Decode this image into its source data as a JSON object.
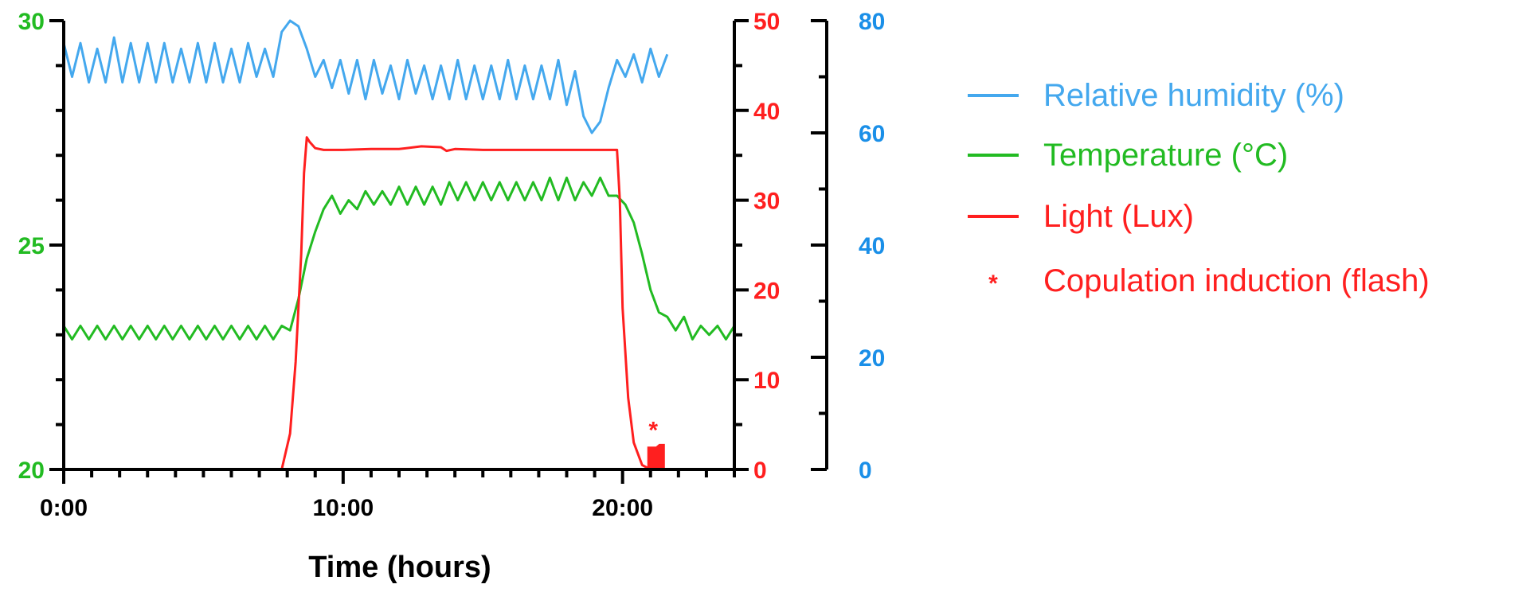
{
  "chart_data": {
    "type": "line",
    "title": "",
    "xlabel": "Time (hours)",
    "x_ticks": [
      "0:00",
      "10:00",
      "20:00"
    ],
    "x_range_hours": [
      0,
      24
    ],
    "axes": {
      "temperature": {
        "range": [
          20,
          30
        ],
        "ticks": [
          "20",
          "25",
          "30"
        ],
        "color": "#22bb22"
      },
      "light": {
        "range": [
          0,
          50
        ],
        "ticks": [
          "0",
          "10",
          "20",
          "30",
          "40",
          "50"
        ],
        "color": "#ff1f1f"
      },
      "humidity": {
        "range": [
          0,
          80
        ],
        "ticks": [
          "0",
          "20",
          "40",
          "60",
          "80"
        ],
        "color": "#1a8fe8"
      }
    },
    "legend": {
      "position": "right",
      "items": [
        {
          "label": "Relative humidity (%)",
          "color": "#44a8ee",
          "marker": "line"
        },
        {
          "label": "Temperature (°C)",
          "color": "#22bb22",
          "marker": "line"
        },
        {
          "label": "Light (Lux)",
          "color": "#ff1f1f",
          "marker": "line"
        },
        {
          "label": "Copulation induction (flash)",
          "color": "#ff1f1f",
          "marker": "*"
        }
      ]
    },
    "annotations": [
      {
        "text": "*",
        "x_hours": 21.1,
        "color": "#ff1f1f"
      }
    ],
    "series": [
      {
        "name": "Relative humidity (%)",
        "axis": "humidity",
        "color": "#44a8ee",
        "x": [
          0,
          0.3,
          0.6,
          0.9,
          1.2,
          1.5,
          1.8,
          2.1,
          2.4,
          2.7,
          3,
          3.3,
          3.6,
          3.9,
          4.2,
          4.5,
          4.8,
          5.1,
          5.4,
          5.7,
          6,
          6.3,
          6.6,
          6.9,
          7.2,
          7.5,
          7.8,
          8.1,
          8.4,
          8.7,
          9,
          9.3,
          9.6,
          9.9,
          10.2,
          10.5,
          10.8,
          11.1,
          11.4,
          11.7,
          12,
          12.3,
          12.6,
          12.9,
          13.2,
          13.5,
          13.8,
          14.1,
          14.4,
          14.7,
          15,
          15.3,
          15.6,
          15.9,
          16.2,
          16.5,
          16.8,
          17.1,
          17.4,
          17.7,
          18,
          18.3,
          18.6,
          18.9,
          19.2,
          19.5,
          19.8,
          20.1,
          20.4,
          20.7,
          21,
          21.3,
          21.6
        ],
        "values": [
          76,
          70,
          76,
          69,
          75,
          69,
          77,
          69,
          76,
          69,
          76,
          69,
          76,
          69,
          75,
          69,
          76,
          69,
          76,
          69,
          75,
          69,
          76,
          70,
          75,
          70,
          78,
          80,
          79,
          75,
          70,
          73,
          68,
          73,
          67,
          73,
          66,
          73,
          67,
          72,
          66,
          73,
          67,
          72,
          66,
          72,
          66,
          73,
          66,
          72,
          66,
          72,
          66,
          73,
          66,
          72,
          66,
          72,
          66,
          73,
          65,
          71,
          63,
          60,
          62,
          68,
          73,
          70,
          74,
          69,
          75,
          70,
          74
        ]
      },
      {
        "name": "Temperature (°C)",
        "axis": "temperature",
        "color": "#22bb22",
        "x": [
          0,
          0.3,
          0.6,
          0.9,
          1.2,
          1.5,
          1.8,
          2.1,
          2.4,
          2.7,
          3,
          3.3,
          3.6,
          3.9,
          4.2,
          4.5,
          4.8,
          5.1,
          5.4,
          5.7,
          6,
          6.3,
          6.6,
          6.9,
          7.2,
          7.5,
          7.8,
          8.1,
          8.4,
          8.7,
          9,
          9.3,
          9.6,
          9.9,
          10.2,
          10.5,
          10.8,
          11.1,
          11.4,
          11.7,
          12,
          12.3,
          12.6,
          12.9,
          13.2,
          13.5,
          13.8,
          14.1,
          14.4,
          14.7,
          15,
          15.3,
          15.6,
          15.9,
          16.2,
          16.5,
          16.8,
          17.1,
          17.4,
          17.7,
          18,
          18.3,
          18.6,
          18.9,
          19.2,
          19.5,
          19.8,
          20.1,
          20.4,
          20.7,
          21,
          21.3,
          21.6,
          21.9,
          22.2,
          22.5,
          22.8,
          23.1,
          23.4,
          23.7,
          24
        ],
        "values": [
          23.2,
          22.9,
          23.2,
          22.9,
          23.2,
          22.9,
          23.2,
          22.9,
          23.2,
          22.9,
          23.2,
          22.9,
          23.2,
          22.9,
          23.2,
          22.9,
          23.2,
          22.9,
          23.2,
          22.9,
          23.2,
          22.9,
          23.2,
          22.9,
          23.2,
          22.9,
          23.2,
          23.1,
          23.8,
          24.7,
          25.3,
          25.8,
          26.1,
          25.7,
          26.0,
          25.8,
          26.2,
          25.9,
          26.2,
          25.9,
          26.3,
          25.9,
          26.3,
          25.9,
          26.3,
          25.9,
          26.4,
          26.0,
          26.4,
          26.0,
          26.4,
          26.0,
          26.4,
          26.0,
          26.4,
          26.0,
          26.4,
          26.0,
          26.5,
          26.0,
          26.5,
          26.0,
          26.4,
          26.1,
          26.5,
          26.1,
          26.1,
          25.9,
          25.5,
          24.8,
          24.0,
          23.5,
          23.4,
          23.1,
          23.4,
          22.9,
          23.2,
          23.0,
          23.2,
          22.9,
          23.2
        ]
      },
      {
        "name": "Light (Lux)",
        "axis": "light",
        "color": "#ff1f1f",
        "x": [
          0,
          7.8,
          8.1,
          8.3,
          8.5,
          8.6,
          8.7,
          8.8,
          9.0,
          9.3,
          10.0,
          11.0,
          12.0,
          12.8,
          13.5,
          13.7,
          14.0,
          15.0,
          16.0,
          17.0,
          18.0,
          19.0,
          19.8,
          19.9,
          20.0,
          20.2,
          20.4,
          20.7,
          21.0,
          21.5,
          22.0,
          24.0
        ],
        "values": [
          0,
          0,
          4,
          12,
          24,
          33,
          37,
          36.5,
          35.8,
          35.6,
          35.6,
          35.7,
          35.7,
          36.0,
          35.9,
          35.5,
          35.7,
          35.6,
          35.6,
          35.6,
          35.6,
          35.6,
          35.6,
          30,
          18,
          8,
          3,
          0.5,
          0,
          0,
          0,
          0
        ]
      },
      {
        "name": "Copulation induction (flash)",
        "axis": "light",
        "color": "#ff1f1f",
        "x": [
          20.9,
          21.5
        ],
        "values": [
          2.5,
          2.8
        ]
      }
    ]
  }
}
